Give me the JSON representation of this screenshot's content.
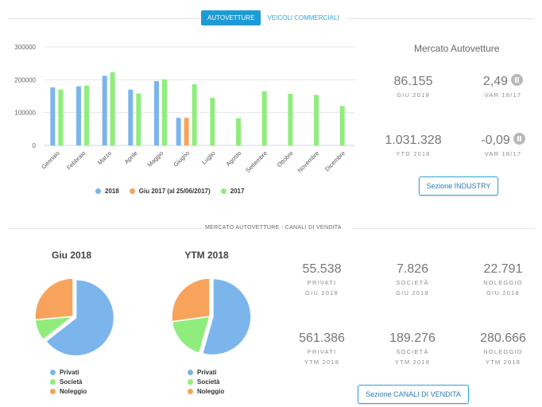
{
  "tabs": [
    {
      "label": "AUTOVETTURE",
      "active": true
    },
    {
      "label": "VEICOLI COMMERCIALI",
      "active": false
    }
  ],
  "mercato": {
    "title": "Mercato Autovetture",
    "kpis": [
      {
        "value": "86.155",
        "label": "GIU 2018"
      },
      {
        "value": "2,49",
        "label": "VAR 18/17",
        "icon": "pause-icon"
      },
      {
        "value": "1.031.328",
        "label": "YTD 2018"
      },
      {
        "value": "-0,09",
        "label": "VAR 18/17",
        "icon": "pause-icon"
      }
    ],
    "button": "Sezione INDUSTRY"
  },
  "chart_data": [
    {
      "type": "bar",
      "categories": [
        "Gennaio",
        "Febbraio",
        "Marzo",
        "Aprile",
        "Maggio",
        "Giugno",
        "Luglio",
        "Agosto",
        "Settembre",
        "Ottobre",
        "Novembre",
        "Dicembre"
      ],
      "series": [
        {
          "name": "2018",
          "color": "#7cb5ec",
          "values": [
            177000,
            180000,
            212000,
            170000,
            196000,
            84000,
            null,
            null,
            null,
            null,
            null,
            null
          ]
        },
        {
          "name": "Giu 2017 (al 25/06/2017)",
          "color": "#f7a35c",
          "values": [
            null,
            null,
            null,
            null,
            null,
            84000,
            null,
            null,
            null,
            null,
            null,
            null
          ]
        },
        {
          "name": "2017",
          "color": "#90ed7d",
          "values": [
            170000,
            182000,
            223000,
            158000,
            201000,
            186000,
            145000,
            83000,
            165000,
            157000,
            154000,
            120000
          ]
        }
      ],
      "yticks": [
        "0",
        "100000",
        "200000",
        "300000"
      ],
      "ylim": [
        0,
        300000
      ],
      "legend_position": "bottom"
    },
    {
      "type": "pie",
      "title": "Giu 2018",
      "slices": [
        {
          "name": "Privati",
          "value": 55538,
          "color": "#7cb5ec"
        },
        {
          "name": "Società",
          "value": 7826,
          "color": "#90ed7d"
        },
        {
          "name": "Noleggio",
          "value": 22791,
          "color": "#f7a35c"
        }
      ]
    },
    {
      "type": "pie",
      "title": "YTM 2018",
      "slices": [
        {
          "name": "Privati",
          "value": 561386,
          "color": "#7cb5ec"
        },
        {
          "name": "Società",
          "value": 189276,
          "color": "#90ed7d"
        },
        {
          "name": "Noleggio",
          "value": 280666,
          "color": "#f7a35c"
        }
      ]
    }
  ],
  "canali": {
    "section_title": "MERCATO AUTOVETTURE - CANALI DI VENDITA",
    "kpis": [
      {
        "value": "55.538",
        "label1": "PRIVATI",
        "label2": "GIU 2018"
      },
      {
        "value": "7.826",
        "label1": "SOCIETÀ",
        "label2": "GIU 2018"
      },
      {
        "value": "22.791",
        "label1": "NOLEGGIO",
        "label2": "GIU 2018"
      },
      {
        "value": "561.386",
        "label1": "PRIVATI",
        "label2": "YTM 2018"
      },
      {
        "value": "189.276",
        "label1": "SOCIETÀ",
        "label2": "YTM 2018"
      },
      {
        "value": "280.666",
        "label1": "NOLEGGIO",
        "label2": "YTM 2018"
      }
    ],
    "button": "Sezione CANALI DI VENDITA"
  }
}
